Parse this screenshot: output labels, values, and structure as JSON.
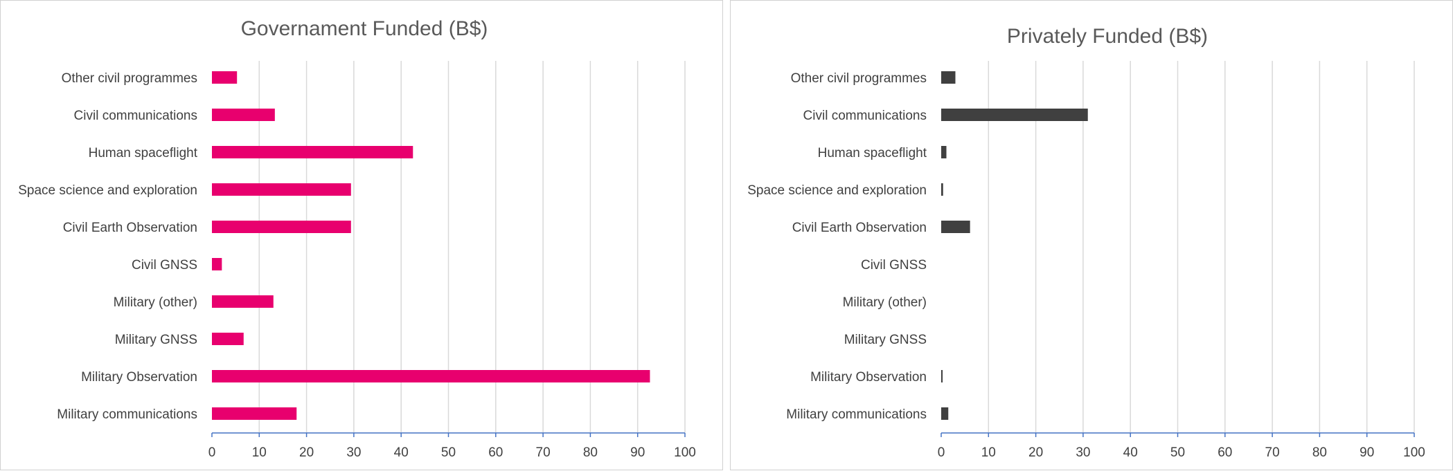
{
  "chart_data": [
    {
      "type": "bar",
      "orientation": "horizontal",
      "title": "Governament Funded (B$)",
      "categories": [
        "Other civil programmes",
        "Civil communications",
        "Human spaceflight",
        "Space science and exploration",
        "Civil Earth Observation",
        "Civil GNSS",
        "Military (other)",
        "Military GNSS",
        "Military Observation",
        "Military communications"
      ],
      "values": [
        5.3,
        13.3,
        42.5,
        29.4,
        29.4,
        2.1,
        13,
        6.7,
        92.6,
        17.9
      ],
      "color": "#e8006e",
      "xlim": [
        0,
        100
      ],
      "xticks": [
        0,
        10,
        20,
        30,
        40,
        50,
        60,
        70,
        80,
        90,
        100
      ],
      "grid": true,
      "xlabel": "",
      "ylabel": ""
    },
    {
      "type": "bar",
      "orientation": "horizontal",
      "title": "Privately Funded (B$)",
      "categories": [
        "Other civil programmes",
        "Civil communications",
        "Human spaceflight",
        "Space science and exploration",
        "Civil Earth Observation",
        "Civil GNSS",
        "Military (other)",
        "Military GNSS",
        "Military Observation",
        "Military communications"
      ],
      "values": [
        3,
        31,
        1.1,
        0.4,
        6.1,
        0,
        0,
        0,
        0.3,
        1.5
      ],
      "color": "#404040",
      "xlim": [
        0,
        100
      ],
      "xticks": [
        0,
        10,
        20,
        30,
        40,
        50,
        60,
        70,
        80,
        90,
        100
      ],
      "grid": true,
      "xlabel": "",
      "ylabel": ""
    }
  ]
}
